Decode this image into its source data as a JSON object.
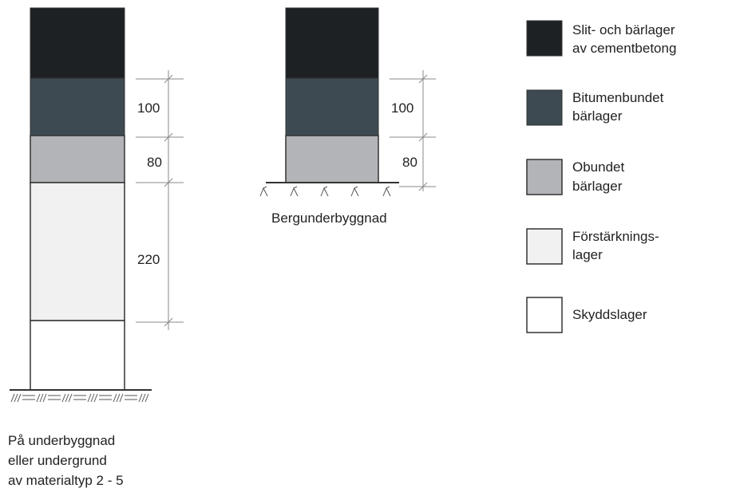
{
  "colors": {
    "wearing_course": "#1e2124",
    "bitumen_base": "#3d4a51",
    "unbound_base": "#b3b4b8",
    "reinforcement": "#f1f1f1",
    "protection": "#ffffff",
    "line": "#444444"
  },
  "left_profile": {
    "dimensions": [
      "100",
      "80",
      "220"
    ],
    "caption": [
      "På underbyggnad",
      "eller undergrund",
      "av materialtyp 2 - 5"
    ]
  },
  "right_profile": {
    "dimensions": [
      "100",
      "80"
    ],
    "caption": "Bergunderbyggnad"
  },
  "legend": [
    {
      "lines": [
        "Slit- och bärlager",
        "av cementbetong"
      ],
      "swatch": "wearing_course"
    },
    {
      "lines": [
        "Bitumenbundet",
        "bärlager"
      ],
      "swatch": "bitumen_base"
    },
    {
      "lines": [
        "Obundet",
        "bärlager"
      ],
      "swatch": "unbound_base"
    },
    {
      "lines": [
        "Förstärknings-",
        "lager"
      ],
      "swatch": "reinforcement"
    },
    {
      "lines": [
        "Skyddslager"
      ],
      "swatch": "protection"
    }
  ]
}
